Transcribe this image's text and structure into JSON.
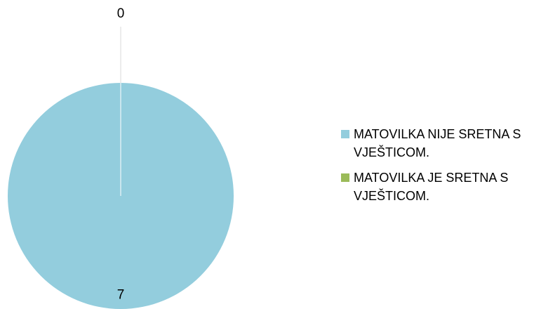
{
  "chart_data": {
    "type": "pie",
    "categories": [
      "MATOVILKA NIJE SRETNA S VJEŠTICOM.",
      "MATOVILKA JE SRETNA S VJEŠTICOM."
    ],
    "values": [
      7,
      0
    ],
    "colors": [
      "#93cddd",
      "#9bbb59"
    ],
    "legend": "right"
  }
}
